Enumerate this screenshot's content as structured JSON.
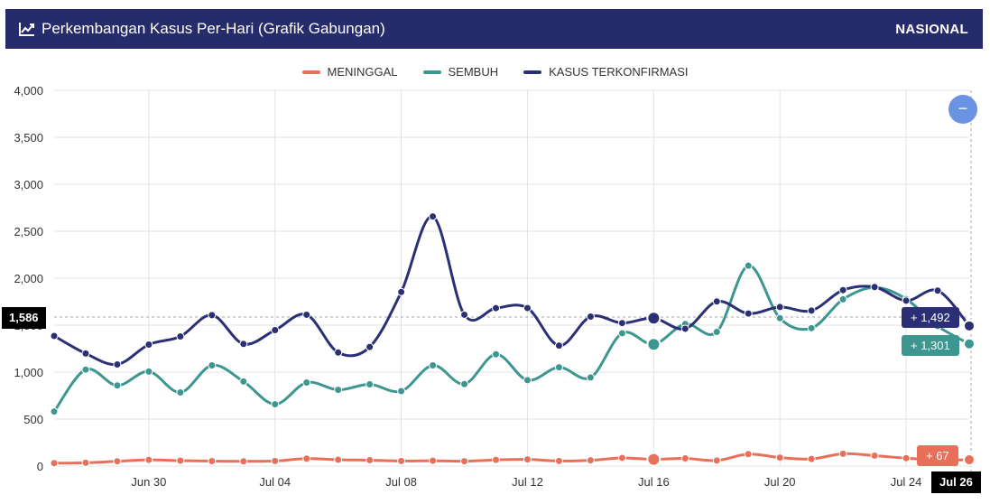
{
  "header": {
    "title": "Perkembangan Kasus Per-Hari (Grafik Gabungan)",
    "region": "NASIONAL",
    "icon": "chart-line-icon"
  },
  "legend": [
    {
      "label": "MENINGGAL",
      "color": "#e8705a"
    },
    {
      "label": "SEMBUH",
      "color": "#3d968f"
    },
    {
      "label": "KASUS TERKONFIRMASI",
      "color": "#2b2f74"
    }
  ],
  "crosshair": {
    "y_label": "1,586",
    "x_label": "Jul 26"
  },
  "tooltips": {
    "confirmed": "+ 1,492",
    "recovered": "+ 1,301",
    "deaths": "+ 67"
  },
  "zoom_button": "−",
  "chart_data": {
    "type": "line",
    "x": [
      "Jun 27",
      "Jun 28",
      "Jun 29",
      "Jun 30",
      "Jul 01",
      "Jul 02",
      "Jul 03",
      "Jul 04",
      "Jul 05",
      "Jul 06",
      "Jul 07",
      "Jul 08",
      "Jul 09",
      "Jul 10",
      "Jul 11",
      "Jul 12",
      "Jul 13",
      "Jul 14",
      "Jul 15",
      "Jul 16",
      "Jul 17",
      "Jul 18",
      "Jul 19",
      "Jul 20",
      "Jul 21",
      "Jul 22",
      "Jul 23",
      "Jul 24",
      "Jul 25",
      "Jul 26"
    ],
    "x_ticks": [
      "Jun 30",
      "Jul 04",
      "Jul 08",
      "Jul 12",
      "Jul 16",
      "Jul 20",
      "Jul 24"
    ],
    "ylim": [
      0,
      4000
    ],
    "y_ticks": [
      "0",
      "500",
      "1,000",
      "1,500",
      "2,000",
      "2,500",
      "3,000",
      "3,500",
      "4,000"
    ],
    "series": [
      {
        "name": "KASUS TERKONFIRMASI",
        "color": "#2b2f74",
        "values": [
          1385,
          1198,
          1082,
          1293,
          1380,
          1607,
          1300,
          1447,
          1611,
          1209,
          1268,
          1853,
          2657,
          1611,
          1681,
          1682,
          1282,
          1591,
          1522,
          1574,
          1462,
          1752,
          1624,
          1693,
          1655,
          1873,
          1906,
          1761,
          1868,
          1492
        ]
      },
      {
        "name": "SEMBUH",
        "color": "#3d968f",
        "values": [
          580,
          1027,
          858,
          1006,
          784,
          1072,
          900,
          658,
          889,
          811,
          870,
          798,
          1072,
          873,
          1190,
          915,
          1052,
          943,
          1414,
          1296,
          1512,
          1428,
          2133,
          1574,
          1468,
          1775,
          1902,
          1778,
          1490,
          1301
        ]
      },
      {
        "name": "MENINGGAL",
        "color": "#e8705a",
        "values": [
          31,
          35,
          51,
          66,
          58,
          53,
          50,
          54,
          79,
          67,
          63,
          54,
          57,
          52,
          66,
          71,
          54,
          61,
          87,
          71,
          82,
          59,
          127,
          90,
          76,
          131,
          111,
          84,
          66,
          67
        ]
      }
    ]
  }
}
